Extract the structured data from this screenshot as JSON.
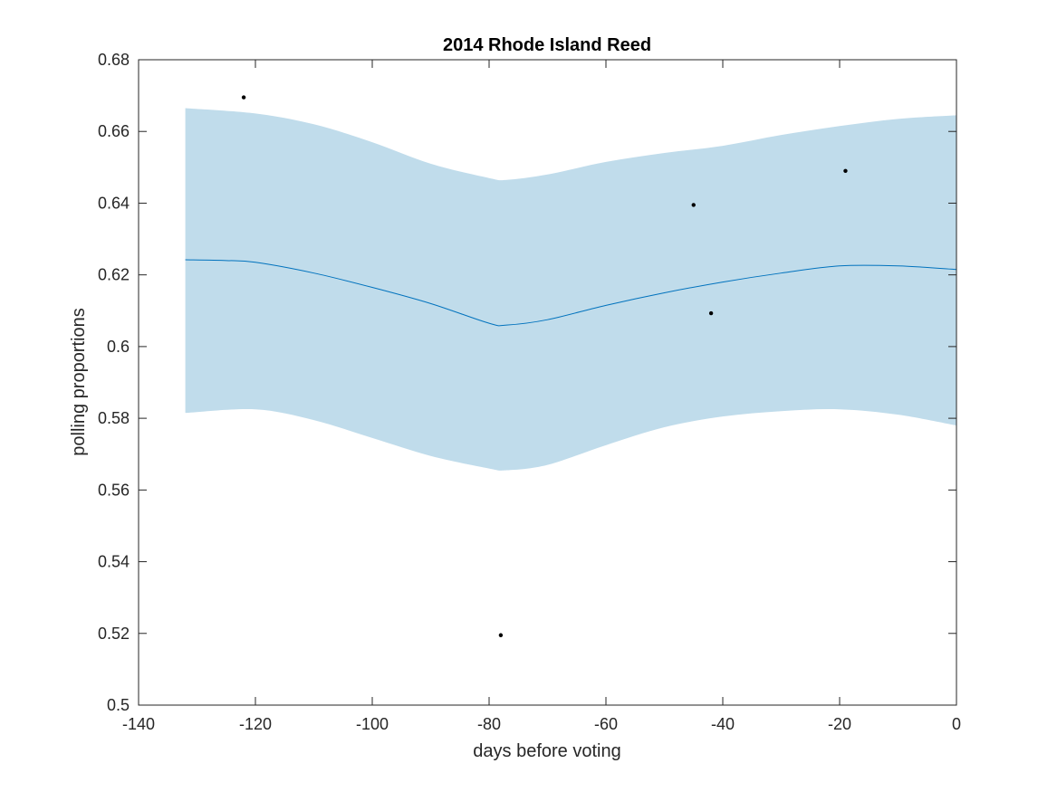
{
  "chart_data": {
    "type": "line",
    "title": "2014 Rhode Island Reed",
    "xlabel": "days before voting",
    "ylabel": "polling proportions",
    "xlim": [
      -140,
      0
    ],
    "ylim": [
      0.5,
      0.68
    ],
    "xticks": [
      -140,
      -120,
      -100,
      -80,
      -60,
      -40,
      -20,
      0
    ],
    "yticks": [
      0.5,
      0.52,
      0.54,
      0.56,
      0.58,
      0.6,
      0.62,
      0.64,
      0.66,
      0.68
    ],
    "xtick_labels": [
      "-140",
      "-120",
      "-100",
      "-80",
      "-60",
      "-40",
      "-20",
      "0"
    ],
    "ytick_labels": [
      "0.5",
      "0.52",
      "0.54",
      "0.56",
      "0.58",
      "0.6",
      "0.62",
      "0.64",
      "0.66",
      "0.68"
    ],
    "grid": false,
    "band": {
      "x": [
        -132,
        -120,
        -110,
        -100,
        -90,
        -80,
        -77,
        -70,
        -60,
        -50,
        -40,
        -30,
        -20,
        -10,
        0
      ],
      "upper": [
        0.6665,
        0.665,
        0.662,
        0.657,
        0.651,
        0.647,
        0.6465,
        0.648,
        0.6515,
        0.654,
        0.656,
        0.659,
        0.6615,
        0.6635,
        0.6645
      ],
      "lower": [
        0.5815,
        0.5825,
        0.5795,
        0.5745,
        0.5695,
        0.566,
        0.5655,
        0.567,
        0.5725,
        0.5775,
        0.5805,
        0.582,
        0.5825,
        0.581,
        0.578
      ]
    },
    "series": [
      {
        "x": [
          -132,
          -125,
          -120,
          -110,
          -100,
          -90,
          -80,
          -77,
          -70,
          -60,
          -50,
          -40,
          -30,
          -20,
          -10,
          0
        ],
        "values": [
          0.6242,
          0.624,
          0.6235,
          0.6205,
          0.6165,
          0.612,
          0.6065,
          0.606,
          0.6075,
          0.6115,
          0.615,
          0.618,
          0.6205,
          0.6225,
          0.6225,
          0.6215
        ]
      }
    ],
    "points": {
      "x": [
        -122,
        -78,
        -45,
        -42,
        -19
      ],
      "y": [
        0.6695,
        0.5195,
        0.6395,
        0.6093,
        0.649
      ]
    },
    "colors": {
      "band": "#c0dceb",
      "line": "#0072bd",
      "points": "#000000",
      "axes": "#262626"
    }
  }
}
